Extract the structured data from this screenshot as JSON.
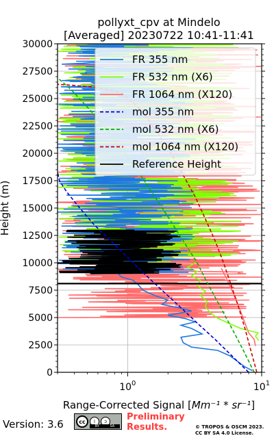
{
  "chart_data": {
    "type": "line",
    "title": "pollyxt_cpv at Mindelo",
    "subtitle": "[Averaged] 20230722 10:41-11:41",
    "xlabel": "Range-Corrected Signal [",
    "xlabel_units": "Mm⁻¹ * sr⁻¹",
    "xlabel_close": "]",
    "ylabel": "Height (m)",
    "xscale": "log",
    "xlim": [
      0.3,
      10
    ],
    "ylim": [
      0,
      30000
    ],
    "xticks": [
      {
        "value": 1,
        "label": "10",
        "exp": "0"
      },
      {
        "value": 10,
        "label": "10",
        "exp": "1"
      }
    ],
    "yticks": [
      0,
      2500,
      5000,
      7500,
      10000,
      12500,
      15000,
      17500,
      20000,
      22500,
      25000,
      27500,
      30000
    ],
    "ytick_labels": [
      "0",
      "2500",
      "5000",
      "7500",
      "10000",
      "12500",
      "15000",
      "17500",
      "20000",
      "22500",
      "25000",
      "27500",
      "30000"
    ],
    "grid": true,
    "legend_position": "top-right",
    "series": [
      {
        "name": "FR 355 nm",
        "color": "#1f78e0",
        "style": "solid",
        "points": [
          [
            8.5,
            150
          ],
          [
            7.5,
            500
          ],
          [
            6.6,
            1000
          ],
          [
            5.8,
            1500
          ],
          [
            4.7,
            2000
          ],
          [
            3.0,
            2300
          ],
          [
            2.6,
            2700
          ],
          [
            2.5,
            3200
          ],
          [
            3.6,
            3500
          ],
          [
            3.0,
            4000
          ],
          [
            2.5,
            4300
          ],
          [
            3.2,
            4600
          ],
          [
            2.7,
            4900
          ],
          [
            2.0,
            5200
          ],
          [
            3.0,
            5600
          ],
          [
            2.4,
            5900
          ],
          [
            1.8,
            6200
          ],
          [
            2.0,
            6600
          ],
          [
            1.6,
            7000
          ],
          [
            1.3,
            7500
          ],
          [
            1.2,
            8000
          ],
          [
            1.1,
            8400
          ],
          [
            0.9,
            8700
          ],
          [
            0.85,
            9000
          ]
        ],
        "noise_from": 9000,
        "noise_to": 30000,
        "noise_range": [
          0.3,
          3.2
        ]
      },
      {
        "name": "FR 532 nm (X6)",
        "color": "#80ff00",
        "style": "solid",
        "points": [
          [
            9.5,
            2900
          ],
          [
            9.0,
            3300
          ],
          [
            9.4,
            3600
          ],
          [
            7.0,
            4000
          ],
          [
            5.6,
            4500
          ],
          [
            4.6,
            5000
          ],
          [
            4.1,
            5500
          ],
          [
            3.8,
            6000
          ],
          [
            3.9,
            6500
          ],
          [
            3.5,
            7000
          ],
          [
            3.8,
            7400
          ],
          [
            3.3,
            7900
          ],
          [
            3.5,
            8400
          ],
          [
            3.0,
            8800
          ],
          [
            3.3,
            9200
          ],
          [
            2.8,
            9600
          ],
          [
            3.2,
            10000
          ]
        ],
        "noise_from": 10000,
        "noise_to": 30000,
        "noise_range": [
          0.3,
          7.0
        ]
      },
      {
        "name": "FR 1064 nm (X120)",
        "color": "#ff6b6b",
        "style": "solid",
        "points": [
          [
            9.0,
            2400
          ],
          [
            8.8,
            3000
          ],
          [
            8.0,
            3600
          ],
          [
            7.5,
            4500
          ],
          [
            7.0,
            5500
          ],
          [
            6.5,
            6500
          ],
          [
            6.0,
            7500
          ],
          [
            5.5,
            8500
          ],
          [
            5.0,
            9500
          ]
        ],
        "noise_from": 5000,
        "noise_to": 30000,
        "noise_range": [
          0.3,
          10.0
        ]
      },
      {
        "name": "mol 355 nm",
        "color": "#0000cc",
        "style": "dashed",
        "points": [
          [
            8.0,
            0
          ],
          [
            6.0,
            1500
          ],
          [
            4.5,
            3000
          ],
          [
            3.3,
            4500
          ],
          [
            2.45,
            6000
          ],
          [
            1.8,
            7500
          ],
          [
            1.33,
            9000
          ],
          [
            1.0,
            10500
          ],
          [
            0.75,
            12000
          ],
          [
            0.56,
            13500
          ],
          [
            0.44,
            15000
          ],
          [
            0.35,
            16500
          ],
          [
            0.31,
            17500
          ],
          [
            0.3,
            18300
          ]
        ]
      },
      {
        "name": "mol 532 nm (X6)",
        "color": "#00b000",
        "style": "dashed",
        "points": [
          [
            8.8,
            0
          ],
          [
            7.3,
            2000
          ],
          [
            6.0,
            4000
          ],
          [
            4.9,
            6000
          ],
          [
            4.0,
            8000
          ],
          [
            3.3,
            10000
          ],
          [
            2.6,
            12000
          ],
          [
            2.05,
            14000
          ],
          [
            1.6,
            16000
          ],
          [
            1.25,
            18000
          ],
          [
            0.95,
            20000
          ],
          [
            0.72,
            22000
          ],
          [
            0.52,
            24000
          ],
          [
            0.38,
            25800
          ],
          [
            0.3,
            26900
          ]
        ]
      },
      {
        "name": "mol 1064 nm (X120)",
        "color": "#cc0000",
        "style": "dashed",
        "points": [
          [
            9.2,
            0
          ],
          [
            8.3,
            2000
          ],
          [
            7.5,
            4000
          ],
          [
            6.7,
            6000
          ],
          [
            5.9,
            8000
          ],
          [
            5.2,
            10000
          ],
          [
            4.5,
            12000
          ],
          [
            3.8,
            14000
          ],
          [
            3.2,
            16000
          ],
          [
            2.6,
            18000
          ],
          [
            2.1,
            20000
          ],
          [
            1.65,
            22000
          ],
          [
            1.25,
            24000
          ],
          [
            0.9,
            25500
          ],
          [
            0.6,
            26000
          ],
          [
            0.4,
            26200
          ],
          [
            0.3,
            26300
          ]
        ]
      },
      {
        "name": "Reference Height",
        "color": "#000000",
        "style": "solid",
        "band": [
          9000,
          13000
        ],
        "x_range": [
          0.3,
          2.6
        ]
      }
    ]
  }
}
